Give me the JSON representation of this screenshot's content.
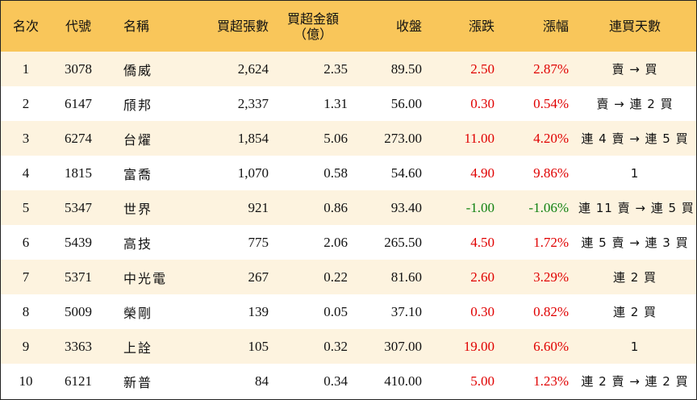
{
  "colors": {
    "header_bg": "#f9c65a",
    "row_alt_bg": "#fdf3df",
    "rise": "#e00000",
    "fall": "#128212"
  },
  "headers": {
    "rank": "名次",
    "code": "代號",
    "name": "名稱",
    "net_buy_lots": "買超張數",
    "net_buy_amount_line1": "買超金額",
    "net_buy_amount_line2": "（億）",
    "close": "收盤",
    "change": "漲跌",
    "change_pct": "漲幅",
    "streak": "連買天數"
  },
  "rows": [
    {
      "rank": "1",
      "code": "3078",
      "name": "僑威",
      "lots": "2,624",
      "amount": "2.35",
      "close": "89.50",
      "change": "2.50",
      "pct": "2.87%",
      "streak": "賣 → 買",
      "dir": "up"
    },
    {
      "rank": "2",
      "code": "6147",
      "name": "頎邦",
      "lots": "2,337",
      "amount": "1.31",
      "close": "56.00",
      "change": "0.30",
      "pct": "0.54%",
      "streak": "賣 → 連 2 買",
      "dir": "up"
    },
    {
      "rank": "3",
      "code": "6274",
      "name": "台燿",
      "lots": "1,854",
      "amount": "5.06",
      "close": "273.00",
      "change": "11.00",
      "pct": "4.20%",
      "streak": "連 4 賣 → 連 5 買",
      "dir": "up"
    },
    {
      "rank": "4",
      "code": "1815",
      "name": "富喬",
      "lots": "1,070",
      "amount": "0.58",
      "close": "54.60",
      "change": "4.90",
      "pct": "9.86%",
      "streak": "1",
      "dir": "up"
    },
    {
      "rank": "5",
      "code": "5347",
      "name": "世界",
      "lots": "921",
      "amount": "0.86",
      "close": "93.40",
      "change": "-1.00",
      "pct": "-1.06%",
      "streak": "連 11 賣 → 連 5 買",
      "dir": "down"
    },
    {
      "rank": "6",
      "code": "5439",
      "name": "高技",
      "lots": "775",
      "amount": "2.06",
      "close": "265.50",
      "change": "4.50",
      "pct": "1.72%",
      "streak": "連 5 賣 → 連 3 買",
      "dir": "up"
    },
    {
      "rank": "7",
      "code": "5371",
      "name": "中光電",
      "lots": "267",
      "amount": "0.22",
      "close": "81.60",
      "change": "2.60",
      "pct": "3.29%",
      "streak": "連 2 買",
      "dir": "up"
    },
    {
      "rank": "8",
      "code": "5009",
      "name": "榮剛",
      "lots": "139",
      "amount": "0.05",
      "close": "37.10",
      "change": "0.30",
      "pct": "0.82%",
      "streak": "連 2 買",
      "dir": "up"
    },
    {
      "rank": "9",
      "code": "3363",
      "name": "上詮",
      "lots": "105",
      "amount": "0.32",
      "close": "307.00",
      "change": "19.00",
      "pct": "6.60%",
      "streak": "1",
      "dir": "up"
    },
    {
      "rank": "10",
      "code": "6121",
      "name": "新普",
      "lots": "84",
      "amount": "0.34",
      "close": "410.00",
      "change": "5.00",
      "pct": "1.23%",
      "streak": "連 2 賣 → 連 2 買",
      "dir": "up"
    }
  ]
}
